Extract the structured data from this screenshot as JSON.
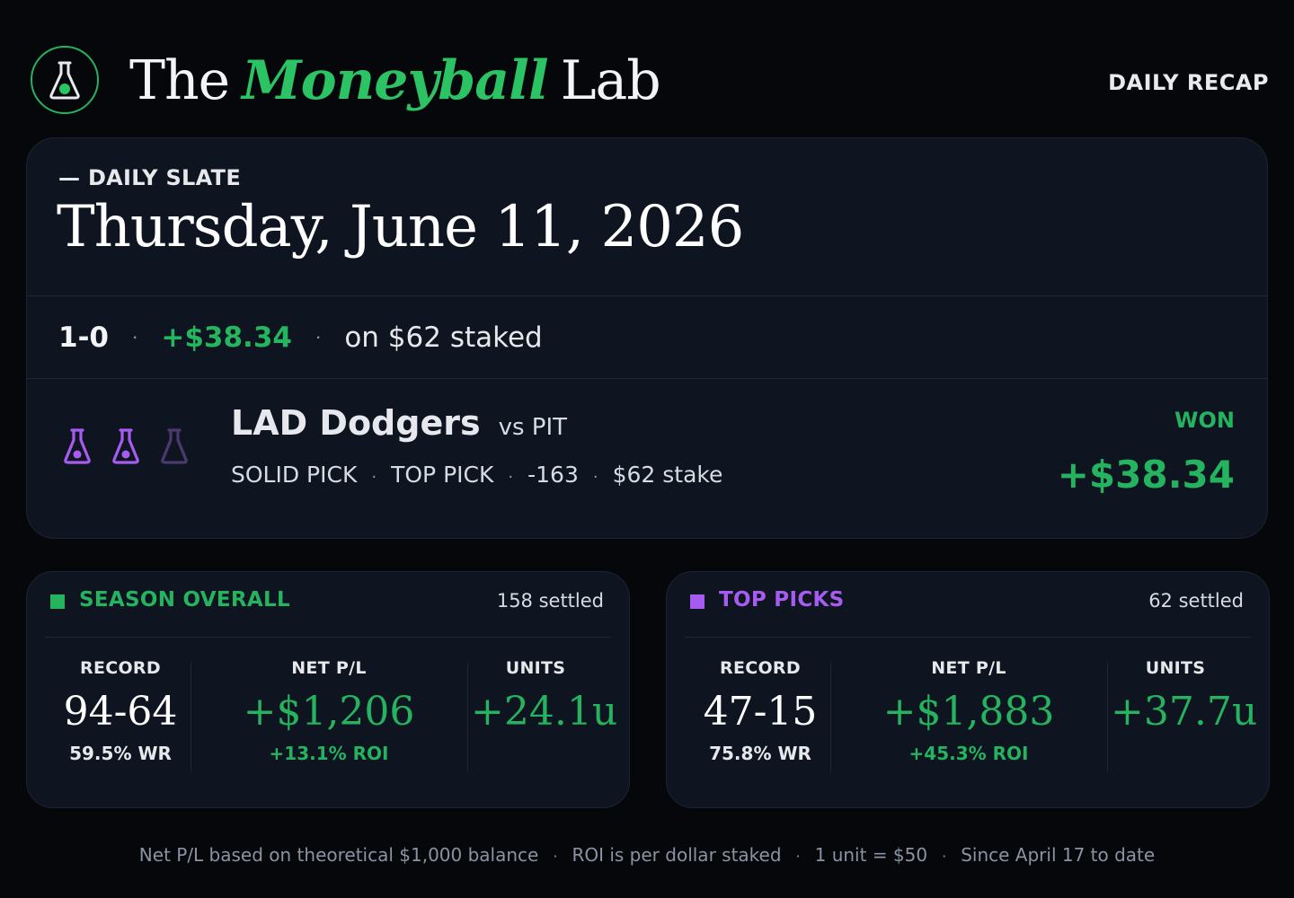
{
  "header": {
    "brand_pre": "The",
    "brand_accent": "Moneyball",
    "brand_post": "Lab",
    "badge": "DAILY RECAP",
    "logo_icon": "flask-icon"
  },
  "slate": {
    "label": "— DAILY SLATE",
    "date": "Thursday, June 11, 2026"
  },
  "summary": {
    "record": "1-0",
    "pl": "+$38.34",
    "staked": "on $62 staked"
  },
  "pick": {
    "team": "LAD Dodgers",
    "opponent": "vs PIT",
    "confidence": [
      "SOLID PICK",
      "TOP PICK",
      "-163",
      "$62 stake"
    ],
    "flasks_filled": 2,
    "flasks_total": 3,
    "result": "WON",
    "amount": "+$38.34"
  },
  "season": {
    "title": "SEASON OVERALL",
    "settled": "158 settled",
    "record_label": "RECORD",
    "record": "94-64",
    "wr": "59.5% WR",
    "pl_label": "NET P/L",
    "pl": "+$1,206",
    "roi": "+13.1% ROI",
    "units_label": "UNITS",
    "units": "+24.1u"
  },
  "top_picks": {
    "title": "TOP PICKS",
    "settled": "62 settled",
    "record_label": "RECORD",
    "record": "47-15",
    "wr": "75.8% WR",
    "pl_label": "NET P/L",
    "pl": "+$1,883",
    "roi": "+45.3% ROI",
    "units_label": "UNITS",
    "units": "+37.7u"
  },
  "footer": {
    "notes": [
      "Net P/L based on theoretical $1,000 balance",
      "ROI is per dollar staked",
      "1 unit = $50",
      "Since April 17 to date"
    ]
  },
  "colors": {
    "green": "#25b35f",
    "purple": "#a65cf0",
    "purple_dim": "#4a3a6e",
    "card_bg": "#0e1420",
    "page_bg": "#05070b"
  }
}
